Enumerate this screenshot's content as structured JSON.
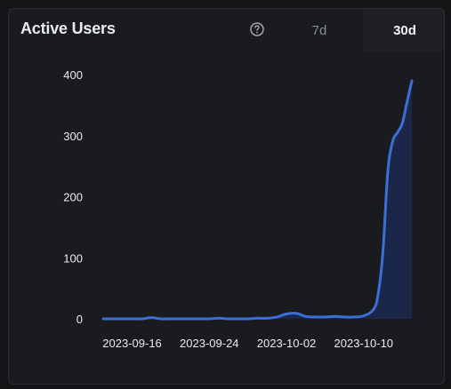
{
  "card": {
    "title": "Active Users",
    "help_icon": "question-circle-icon",
    "tabs": [
      {
        "label": "7d",
        "selected": false
      },
      {
        "label": "30d",
        "selected": true
      }
    ]
  },
  "colors": {
    "background": "#1a1b1e",
    "line": "#3b6fd6",
    "area": "#1b2748",
    "text": "#e9ecef",
    "muted": "#868e96"
  },
  "chart_data": {
    "type": "area",
    "title": "",
    "xlabel": "",
    "ylabel": "",
    "ylim": [
      0,
      400
    ],
    "y_ticks": [
      0,
      100,
      200,
      300,
      400
    ],
    "x_ticks": [
      "2023-09-16",
      "2023-09-24",
      "2023-10-02",
      "2023-10-10"
    ],
    "grid": false,
    "series": [
      {
        "x": [
          "2023-09-13",
          "2023-09-14",
          "2023-09-15",
          "2023-09-16",
          "2023-09-17",
          "2023-09-18",
          "2023-09-19",
          "2023-09-20",
          "2023-09-21",
          "2023-09-22",
          "2023-09-23",
          "2023-09-24",
          "2023-09-25",
          "2023-09-26",
          "2023-09-27",
          "2023-09-28",
          "2023-09-29",
          "2023-09-30",
          "2023-10-01",
          "2023-10-02",
          "2023-10-03",
          "2023-10-04",
          "2023-10-05",
          "2023-10-06",
          "2023-10-07",
          "2023-10-08",
          "2023-10-09",
          "2023-10-10",
          "2023-10-11",
          "2023-10-11T12:00",
          "2023-10-12",
          "2023-10-12T12:00",
          "2023-10-13",
          "2023-10-13T12:00",
          "2023-10-14",
          "2023-10-14T12:00",
          "2023-10-15"
        ],
        "values": [
          0,
          0,
          0,
          0,
          0,
          2,
          0,
          0,
          0,
          0,
          0,
          0,
          1,
          0,
          0,
          0,
          1,
          1,
          3,
          8,
          9,
          4,
          3,
          3,
          4,
          3,
          3,
          5,
          15,
          40,
          110,
          240,
          290,
          305,
          320,
          355,
          390
        ]
      }
    ]
  }
}
